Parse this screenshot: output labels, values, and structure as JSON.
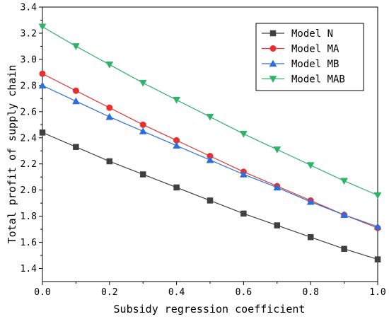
{
  "chart_data": {
    "type": "line",
    "title": "",
    "xlabel": "Subsidy regression coefficient",
    "ylabel": "Total profit of supply chain",
    "xlim": [
      0.0,
      1.0
    ],
    "ylim": [
      1.3,
      3.4
    ],
    "x_ticks": [
      "0.0",
      "0.2",
      "0.4",
      "0.6",
      "0.8",
      "1.0"
    ],
    "y_ticks": [
      "1.4",
      "1.6",
      "1.8",
      "2.0",
      "2.2",
      "2.4",
      "2.6",
      "2.8",
      "3.0",
      "3.2",
      "3.4"
    ],
    "x": [
      0.0,
      0.1,
      0.2,
      0.3,
      0.4,
      0.5,
      0.6,
      0.7,
      0.8,
      0.9,
      1.0
    ],
    "legend_position": "top-right",
    "grid": false,
    "series": [
      {
        "name": "Model N",
        "color": "#404040",
        "marker": "square",
        "values": [
          2.44,
          2.33,
          2.22,
          2.12,
          2.02,
          1.92,
          1.82,
          1.73,
          1.64,
          1.55,
          1.47
        ]
      },
      {
        "name": "Model MA",
        "color": "#e8312f",
        "marker": "circle",
        "values": [
          2.89,
          2.76,
          2.63,
          2.5,
          2.38,
          2.26,
          2.14,
          2.03,
          1.92,
          1.81,
          1.71
        ]
      },
      {
        "name": "Model MB",
        "color": "#2a6fdb",
        "marker": "triangle-up",
        "values": [
          2.8,
          2.68,
          2.56,
          2.45,
          2.34,
          2.23,
          2.12,
          2.02,
          1.91,
          1.81,
          1.72
        ]
      },
      {
        "name": "Model MAB",
        "color": "#2fb36a",
        "marker": "triangle-down",
        "values": [
          3.25,
          3.1,
          2.96,
          2.82,
          2.69,
          2.56,
          2.43,
          2.31,
          2.19,
          2.07,
          1.96
        ]
      }
    ]
  }
}
